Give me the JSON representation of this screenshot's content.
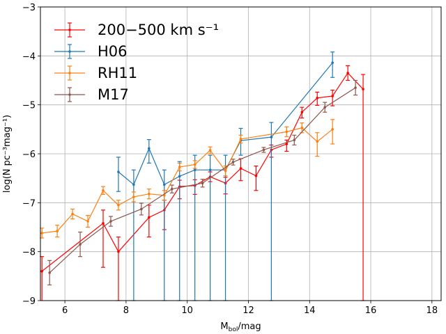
{
  "chart_data": {
    "type": "line",
    "title": "",
    "xlabel_main": "M",
    "xlabel_sub": "bol",
    "xlabel_unit": "/mag",
    "ylabel": "log(N pc⁻³mag⁻¹)",
    "xlim": [
      5.2,
      18.3
    ],
    "ylim": [
      -9,
      -3
    ],
    "xticks": [
      "6",
      "8",
      "10",
      "12",
      "14",
      "16",
      "18"
    ],
    "xtick_values": [
      6,
      8,
      10,
      12,
      14,
      16,
      18
    ],
    "yticks": [
      "−9",
      "−8",
      "−7",
      "−6",
      "−5",
      "−4",
      "−3"
    ],
    "ytick_values": [
      -9,
      -8,
      -7,
      -6,
      -5,
      -4,
      -3
    ],
    "grid": true,
    "legend_position": "upper-left",
    "series": [
      {
        "name": "200−500 km s⁻¹",
        "color": "#ff0000",
        "x": [
          5.25,
          7.25,
          7.75,
          8.75,
          9.25,
          9.75,
          10.25,
          10.75,
          11.25,
          11.75,
          12.25,
          12.75,
          13.25,
          13.75,
          14.25,
          14.75,
          15.25,
          15.75
        ],
        "y": [
          -8.4,
          -7.42,
          -8.0,
          -7.3,
          -7.15,
          -6.67,
          -6.65,
          -6.47,
          -6.6,
          -6.3,
          -6.45,
          -5.92,
          -5.8,
          -5.15,
          -4.86,
          -4.82,
          -4.35,
          -4.68
        ],
        "yerr_low": [
          0.9,
          0.9,
          1.0,
          0.4,
          0.4,
          0.25,
          0.18,
          0.1,
          0.22,
          0.25,
          0.3,
          0.15,
          0.15,
          0.12,
          0.15,
          0.2,
          0.15,
          4.32
        ],
        "yerr_high": [
          0.3,
          0.27,
          0.3,
          0.25,
          0.2,
          0.13,
          0.12,
          0.1,
          0.12,
          0.2,
          0.2,
          0.1,
          0.08,
          0.1,
          0.12,
          0.12,
          0.15,
          0.3
        ]
      },
      {
        "name": "H06",
        "color": "#1f77b4",
        "x": [
          7.75,
          8.25,
          8.75,
          9.25,
          9.75,
          10.25,
          10.75,
          11.25,
          11.75,
          12.75,
          14.75
        ],
        "y": [
          -6.37,
          -6.63,
          -5.89,
          -6.63,
          -6.46,
          -6.33,
          -6.33,
          -6.33,
          -5.73,
          -5.66,
          -4.14
        ],
        "yerr_low": [
          0.4,
          2.37,
          0.3,
          2.37,
          2.54,
          2.67,
          2.67,
          2.67,
          0.3,
          3.34,
          0.3
        ],
        "yerr_high": [
          0.3,
          0.3,
          0.18,
          0.3,
          0.3,
          0.3,
          0.3,
          0.3,
          0.25,
          0.3,
          0.22
        ]
      },
      {
        "name": "RH11",
        "color": "#ff7f0e",
        "x": [
          5.25,
          5.75,
          6.25,
          6.75,
          7.25,
          7.75,
          8.25,
          8.75,
          9.25,
          9.75,
          10.25,
          10.75,
          11.25,
          11.75,
          13.25,
          13.75,
          14.25,
          14.75
        ],
        "y": [
          -7.62,
          -7.58,
          -7.23,
          -7.38,
          -6.75,
          -7.05,
          -6.88,
          -6.82,
          -6.85,
          -6.27,
          -6.22,
          -5.93,
          -6.35,
          -5.7,
          -5.55,
          -5.47,
          -5.75,
          -5.5
        ],
        "yerr_low": [
          0.1,
          0.12,
          0.1,
          0.12,
          0.08,
          0.1,
          0.1,
          0.1,
          0.1,
          0.08,
          0.08,
          0.07,
          0.1,
          0.08,
          0.1,
          0.1,
          0.3,
          0.3
        ],
        "yerr_high": [
          0.1,
          0.12,
          0.1,
          0.12,
          0.08,
          0.1,
          0.1,
          0.1,
          0.1,
          0.08,
          0.08,
          0.07,
          0.1,
          0.08,
          0.1,
          0.1,
          0.18,
          0.2
        ]
      },
      {
        "name": "M17",
        "color": "#8c564b",
        "x": [
          5.5,
          6.5,
          7.5,
          8.5,
          9.5,
          10.5,
          11.5,
          12.5,
          13.5,
          14.5,
          15.5
        ],
        "y": [
          -8.43,
          -7.85,
          -7.38,
          -7.13,
          -6.72,
          -6.6,
          -6.17,
          -5.92,
          -5.72,
          -5.05,
          -4.65
        ],
        "yerr_low": [
          0.25,
          0.25,
          0.1,
          0.12,
          0.08,
          0.08,
          0.06,
          0.05,
          0.1,
          0.1,
          0.15
        ],
        "yerr_high": [
          0.25,
          0.25,
          0.1,
          0.12,
          0.08,
          0.08,
          0.06,
          0.05,
          0.1,
          0.1,
          0.15
        ]
      }
    ]
  }
}
